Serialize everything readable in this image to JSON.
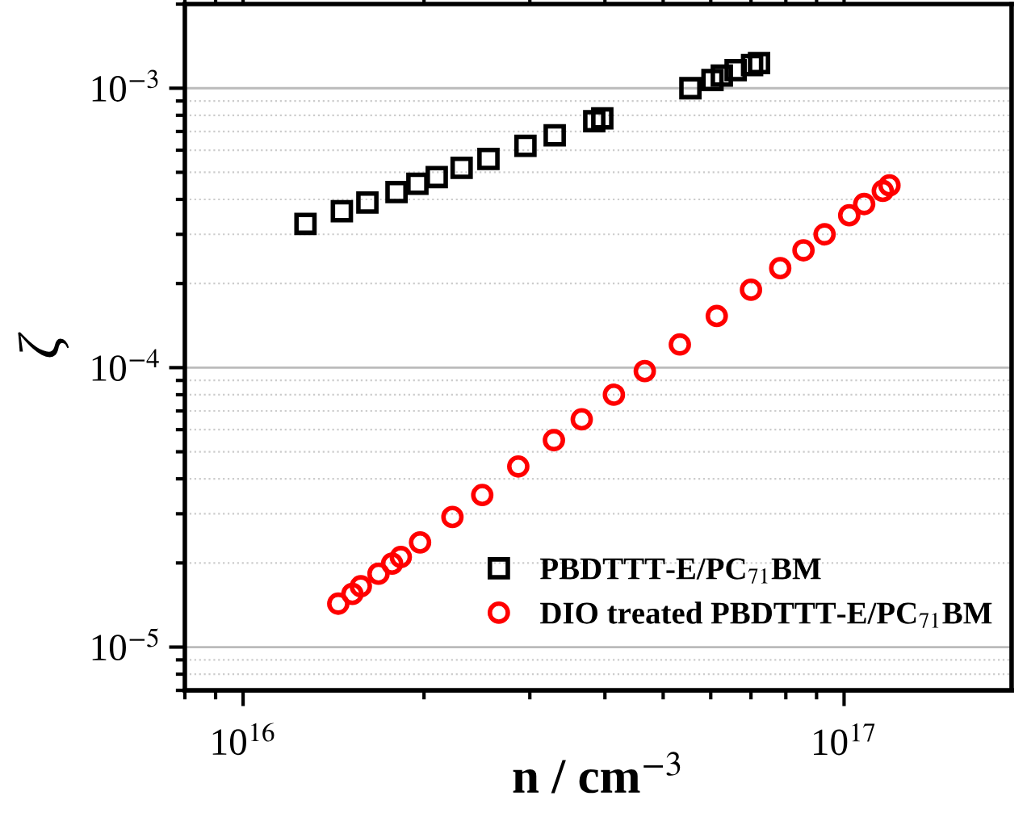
{
  "chart_data": {
    "type": "scatter",
    "xlabel": "n / cm$^{−3}$",
    "ylabel": "ζ",
    "log": "xy",
    "grid": "y",
    "legend": "bottom right",
    "xlim": [
      8000000000000000.0,
      1.9e+17
    ],
    "ylim": [
      7e-06,
      0.002
    ],
    "xticks": [
      {
        "value": 1e+16,
        "label": "10$^{16}$"
      },
      {
        "value": 1e+17,
        "label": "10$^{17}$"
      }
    ],
    "yticks": [
      {
        "value": 1e-05,
        "label": "10$^{−5}$"
      },
      {
        "value": 0.0001,
        "label": "10$^{−4}$"
      },
      {
        "value": 0.001,
        "label": "10$^{−3}$"
      }
    ],
    "series": [
      {
        "name": "PBDTTT-E/PC$_{71}$BM",
        "color": "#000000",
        "marker": "square",
        "x": [
          1.27e+16,
          1.46e+16,
          1.61e+16,
          1.8e+16,
          1.95e+16,
          2.1e+16,
          2.31e+16,
          2.56e+16,
          2.95e+16,
          3.3e+16,
          3.84e+16,
          3.96e+16,
          5.55e+16,
          6.04e+16,
          6.26e+16,
          6.6e+16,
          7.03e+16,
          7.22e+16
        ],
        "values": [
          0.000327,
          0.000363,
          0.00039,
          0.000425,
          0.000455,
          0.000481,
          0.000519,
          0.000558,
          0.000622,
          0.000678,
          0.000762,
          0.00078,
          0.001,
          0.00107,
          0.00111,
          0.00116,
          0.00121,
          0.00123
        ]
      },
      {
        "name": "DIO treated PBDTTT-E/PC$_{71}$BM",
        "color": "#ff0000",
        "marker": "circle",
        "x": [
          1.44e+16,
          1.52e+16,
          1.57e+16,
          1.68e+16,
          1.77e+16,
          1.83e+16,
          1.97e+16,
          2.23e+16,
          2.5e+16,
          2.87e+16,
          3.29e+16,
          3.66e+16,
          4.14e+16,
          4.66e+16,
          5.33e+16,
          6.14e+16,
          7e+16,
          7.83e+16,
          8.56e+16,
          9.28e+16,
          1.02e+17,
          1.08e+17,
          1.16e+17,
          1.19e+17
        ],
        "values": [
          1.43e-05,
          1.55e-05,
          1.65e-05,
          1.83e-05,
          1.99e-05,
          2.1e-05,
          2.37e-05,
          2.92e-05,
          3.5e-05,
          4.43e-05,
          5.5e-05,
          6.53e-05,
          8e-05,
          9.72e-05,
          0.000121,
          0.000153,
          0.00019,
          0.000227,
          0.000263,
          0.0003,
          0.000351,
          0.000385,
          0.000429,
          0.000449
        ]
      }
    ]
  }
}
